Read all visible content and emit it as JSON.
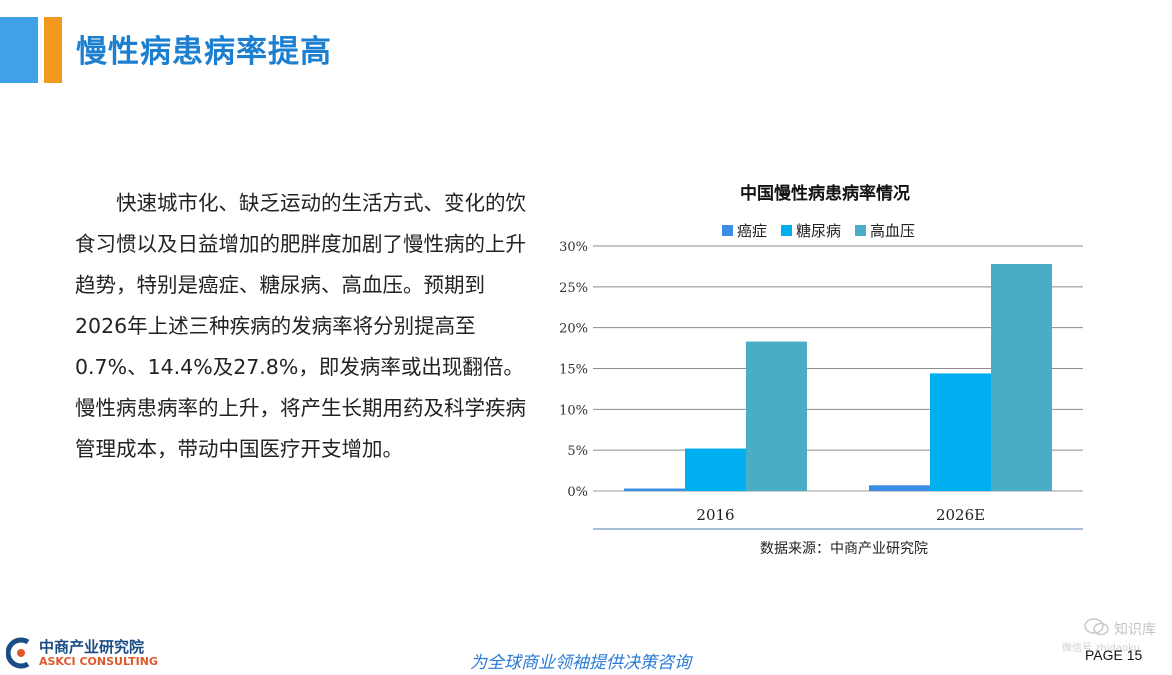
{
  "page": {
    "title": "慢性病患病率提高",
    "paragraph": "快速城市化、缺乏运动的生活方式、变化的饮食习惯以及日益增加的肥胖度加剧了慢性病的上升趋势，特别是癌症、糖尿病、高血压。预期到2026年上述三种疾病的发病率将分别提高至0.7%、14.4%及27.8%，即发病率或出现翻倍。慢性病患病率的上升，将产生长期用药及科学疾病管理成本，带动中国医疗开支增加。"
  },
  "chart_data": {
    "type": "bar",
    "title": "中国慢性病患病率情况",
    "categories": [
      "2016",
      "2026E"
    ],
    "series": [
      {
        "name": "癌症",
        "color": "#3a8ee6",
        "values": [
          0.3,
          0.7
        ]
      },
      {
        "name": "糖尿病",
        "color": "#00aff0",
        "values": [
          5.2,
          14.4
        ]
      },
      {
        "name": "高血压",
        "color": "#4bacc6",
        "values": [
          18.3,
          27.8
        ]
      }
    ],
    "y_ticks": [
      "0%",
      "5%",
      "10%",
      "15%",
      "20%",
      "25%",
      "30%"
    ],
    "ylim": [
      0,
      30
    ],
    "grid": true,
    "legend_position": "top",
    "source": "数据来源：中商产业研究院"
  },
  "footer": {
    "logo_cn": "中商产业研究院",
    "logo_en": "ASKCI CONSULTING",
    "slogan": "为全球商业领袖提供决策咨询",
    "page_label": "PAGE  15"
  },
  "watermark": {
    "line1": "知识库",
    "line2": "微信号 zhidaoku"
  }
}
